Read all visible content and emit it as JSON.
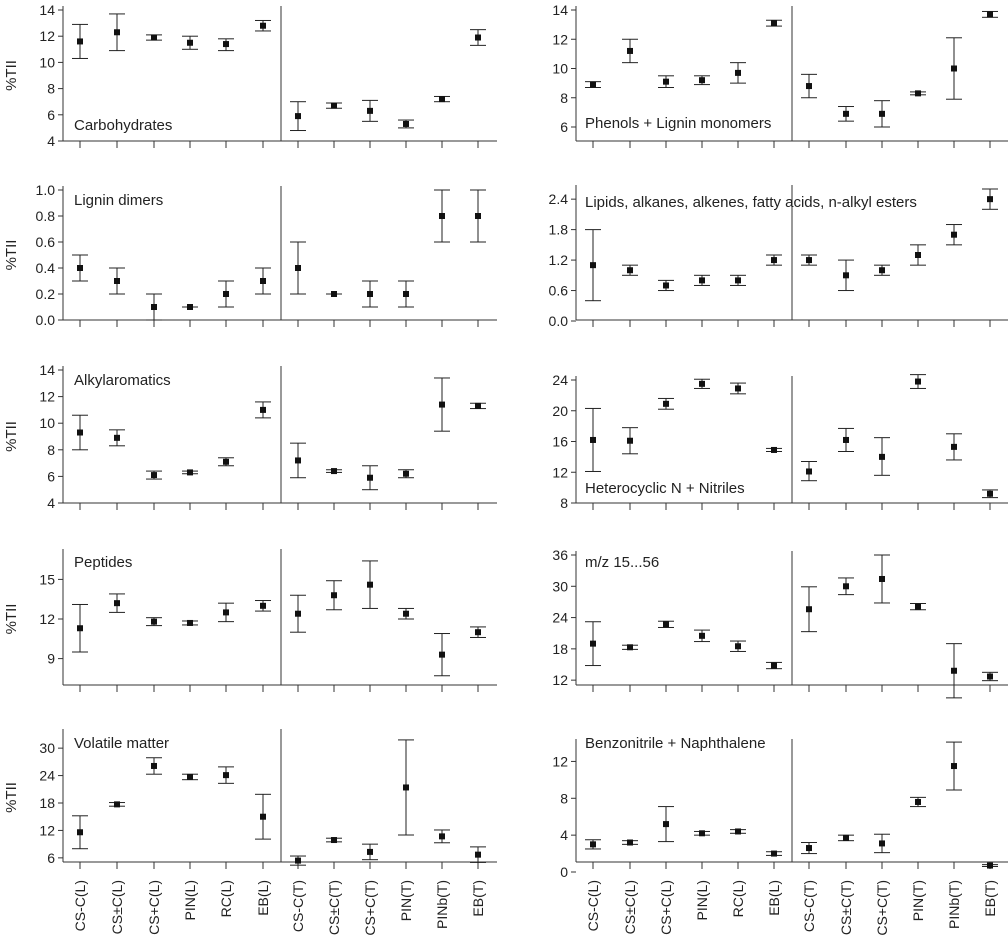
{
  "chart_data": {
    "type": "scatter",
    "x_categories": [
      "CS-C(L)",
      "CS±C(L)",
      "CS+C(L)",
      "PIN(L)",
      "RC(L)",
      "EB(L)",
      "CS-C(T)",
      "CS±C(T)",
      "CS+C(T)",
      "PIN(T)",
      "PINb(T)",
      "EB(T)"
    ],
    "ylabel": "%TII",
    "panels": [
      {
        "label": "Carbohydrates",
        "ylim": [
          4,
          14
        ],
        "yticks": [
          "4",
          "6",
          "8",
          "10",
          "12",
          "14"
        ],
        "points": [
          {
            "x": "CS-C(L)",
            "y": 11.6,
            "lo": 10.3,
            "hi": 12.9
          },
          {
            "x": "CS±C(L)",
            "y": 12.3,
            "lo": 10.9,
            "hi": 13.7
          },
          {
            "x": "CS+C(L)",
            "y": 11.9,
            "lo": 11.7,
            "hi": 12.1
          },
          {
            "x": "PIN(L)",
            "y": 11.5,
            "lo": 11.0,
            "hi": 12.0
          },
          {
            "x": "RC(L)",
            "y": 11.4,
            "lo": 10.9,
            "hi": 11.8
          },
          {
            "x": "EB(L)",
            "y": 12.8,
            "lo": 12.4,
            "hi": 13.2
          },
          {
            "x": "CS-C(T)",
            "y": 5.9,
            "lo": 4.8,
            "hi": 7.0
          },
          {
            "x": "CS±C(T)",
            "y": 6.7,
            "lo": 6.5,
            "hi": 6.9
          },
          {
            "x": "CS+C(T)",
            "y": 6.3,
            "lo": 5.5,
            "hi": 7.1
          },
          {
            "x": "PIN(T)",
            "y": 5.3,
            "lo": 5.0,
            "hi": 5.6
          },
          {
            "x": "PINb(T)",
            "y": 7.2,
            "lo": 7.0,
            "hi": 7.4
          },
          {
            "x": "EB(T)",
            "y": 11.9,
            "lo": 11.3,
            "hi": 12.5
          }
        ]
      },
      {
        "label": "Phenols + Lignin monomers",
        "ylim": [
          6,
          14
        ],
        "yticks": [
          "6",
          "8",
          "10",
          "12",
          "14"
        ],
        "points": [
          {
            "x": "CS-C(L)",
            "y": 8.9,
            "lo": 8.7,
            "hi": 9.1
          },
          {
            "x": "CS±C(L)",
            "y": 11.2,
            "lo": 10.4,
            "hi": 12.0
          },
          {
            "x": "CS+C(L)",
            "y": 9.1,
            "lo": 8.7,
            "hi": 9.5
          },
          {
            "x": "PIN(L)",
            "y": 9.2,
            "lo": 8.9,
            "hi": 9.5
          },
          {
            "x": "RC(L)",
            "y": 9.7,
            "lo": 9.0,
            "hi": 10.4
          },
          {
            "x": "EB(L)",
            "y": 13.1,
            "lo": 12.9,
            "hi": 13.3
          },
          {
            "x": "CS-C(T)",
            "y": 8.8,
            "lo": 8.0,
            "hi": 9.6
          },
          {
            "x": "CS±C(T)",
            "y": 6.9,
            "lo": 6.4,
            "hi": 7.4
          },
          {
            "x": "CS+C(T)",
            "y": 6.9,
            "lo": 6.0,
            "hi": 7.8
          },
          {
            "x": "PIN(T)",
            "y": 8.3,
            "lo": 8.2,
            "hi": 8.4
          },
          {
            "x": "PINb(T)",
            "y": 10.0,
            "lo": 7.9,
            "hi": 12.1
          },
          {
            "x": "EB(T)",
            "y": 13.7,
            "lo": 13.5,
            "hi": 13.9
          }
        ]
      },
      {
        "label": "Lignin dimers",
        "ylim": [
          0,
          1
        ],
        "yticks": [
          "0.0",
          "0.2",
          "0.4",
          "0.6",
          "0.8",
          "1.0"
        ],
        "points": [
          {
            "x": "CS-C(L)",
            "y": 0.4,
            "lo": 0.3,
            "hi": 0.5
          },
          {
            "x": "CS±C(L)",
            "y": 0.3,
            "lo": 0.2,
            "hi": 0.4
          },
          {
            "x": "CS+C(L)",
            "y": 0.1,
            "lo": 0.0,
            "hi": 0.2
          },
          {
            "x": "PIN(L)",
            "y": 0.1,
            "lo": 0.1,
            "hi": 0.1
          },
          {
            "x": "RC(L)",
            "y": 0.2,
            "lo": 0.1,
            "hi": 0.3
          },
          {
            "x": "EB(L)",
            "y": 0.3,
            "lo": 0.2,
            "hi": 0.4
          },
          {
            "x": "CS-C(T)",
            "y": 0.4,
            "lo": 0.2,
            "hi": 0.6
          },
          {
            "x": "CS±C(T)",
            "y": 0.2,
            "lo": 0.2,
            "hi": 0.2
          },
          {
            "x": "CS+C(T)",
            "y": 0.2,
            "lo": 0.1,
            "hi": 0.3
          },
          {
            "x": "PIN(T)",
            "y": 0.2,
            "lo": 0.1,
            "hi": 0.3
          },
          {
            "x": "PINb(T)",
            "y": 0.8,
            "lo": 0.6,
            "hi": 1.0
          },
          {
            "x": "EB(T)",
            "y": 0.8,
            "lo": 0.6,
            "hi": 1.0
          }
        ]
      },
      {
        "label": "Lipids, alkanes, alkenes, fatty acids, n-alkyl esters",
        "ylim": [
          0,
          2.6
        ],
        "yticks": [
          "0.0",
          "0.6",
          "1.2",
          "1.8",
          "2.4"
        ],
        "points": [
          {
            "x": "CS-C(L)",
            "y": 1.1,
            "lo": 0.4,
            "hi": 1.8
          },
          {
            "x": "CS±C(L)",
            "y": 1.0,
            "lo": 0.9,
            "hi": 1.1
          },
          {
            "x": "CS+C(L)",
            "y": 0.7,
            "lo": 0.6,
            "hi": 0.8
          },
          {
            "x": "PIN(L)",
            "y": 0.8,
            "lo": 0.7,
            "hi": 0.9
          },
          {
            "x": "RC(L)",
            "y": 0.8,
            "lo": 0.7,
            "hi": 0.9
          },
          {
            "x": "EB(L)",
            "y": 1.2,
            "lo": 1.1,
            "hi": 1.3
          },
          {
            "x": "CS-C(T)",
            "y": 1.2,
            "lo": 1.1,
            "hi": 1.3
          },
          {
            "x": "CS±C(T)",
            "y": 0.9,
            "lo": 0.6,
            "hi": 1.2
          },
          {
            "x": "CS+C(T)",
            "y": 1.0,
            "lo": 0.9,
            "hi": 1.1
          },
          {
            "x": "PIN(T)",
            "y": 1.3,
            "lo": 1.1,
            "hi": 1.5
          },
          {
            "x": "PINb(T)",
            "y": 1.7,
            "lo": 1.5,
            "hi": 1.9
          },
          {
            "x": "EB(T)",
            "y": 2.4,
            "lo": 2.2,
            "hi": 2.6
          }
        ]
      },
      {
        "label": "Alkylaromatics",
        "ylim": [
          4,
          14
        ],
        "yticks": [
          "4",
          "6",
          "8",
          "10",
          "12",
          "14"
        ],
        "points": [
          {
            "x": "CS-C(L)",
            "y": 9.3,
            "lo": 8.0,
            "hi": 10.6
          },
          {
            "x": "CS±C(L)",
            "y": 8.9,
            "lo": 8.3,
            "hi": 9.5
          },
          {
            "x": "CS+C(L)",
            "y": 6.1,
            "lo": 5.8,
            "hi": 6.4
          },
          {
            "x": "PIN(L)",
            "y": 6.3,
            "lo": 6.2,
            "hi": 6.4
          },
          {
            "x": "RC(L)",
            "y": 7.1,
            "lo": 6.8,
            "hi": 7.4
          },
          {
            "x": "EB(L)",
            "y": 11.0,
            "lo": 10.4,
            "hi": 11.6
          },
          {
            "x": "CS-C(T)",
            "y": 7.2,
            "lo": 5.9,
            "hi": 8.5
          },
          {
            "x": "CS±C(T)",
            "y": 6.4,
            "lo": 6.3,
            "hi": 6.5
          },
          {
            "x": "CS+C(T)",
            "y": 5.9,
            "lo": 5.0,
            "hi": 6.8
          },
          {
            "x": "PIN(T)",
            "y": 6.2,
            "lo": 5.9,
            "hi": 6.5
          },
          {
            "x": "PINb(T)",
            "y": 11.4,
            "lo": 9.4,
            "hi": 13.4
          },
          {
            "x": "EB(T)",
            "y": 11.3,
            "lo": 11.1,
            "hi": 11.5
          }
        ]
      },
      {
        "label": "Heterocyclic N + Nitriles",
        "ylim": [
          8,
          24
        ],
        "yticks": [
          "8",
          "12",
          "16",
          "20",
          "24"
        ],
        "points": [
          {
            "x": "CS-C(L)",
            "y": 16.2,
            "lo": 12.1,
            "hi": 20.3
          },
          {
            "x": "CS±C(L)",
            "y": 16.1,
            "lo": 14.4,
            "hi": 17.8
          },
          {
            "x": "CS+C(L)",
            "y": 20.9,
            "lo": 20.2,
            "hi": 21.6
          },
          {
            "x": "PIN(L)",
            "y": 23.5,
            "lo": 22.9,
            "hi": 24.1
          },
          {
            "x": "RC(L)",
            "y": 22.9,
            "lo": 22.2,
            "hi": 23.6
          },
          {
            "x": "EB(L)",
            "y": 14.9,
            "lo": 14.7,
            "hi": 15.1
          },
          {
            "x": "CS-C(T)",
            "y": 12.1,
            "lo": 10.9,
            "hi": 13.4
          },
          {
            "x": "CS±C(T)",
            "y": 16.2,
            "lo": 14.7,
            "hi": 17.7
          },
          {
            "x": "CS+C(T)",
            "y": 14.0,
            "lo": 11.6,
            "hi": 16.5
          },
          {
            "x": "PIN(T)",
            "y": 23.8,
            "lo": 22.9,
            "hi": 24.7
          },
          {
            "x": "PINb(T)",
            "y": 15.3,
            "lo": 13.6,
            "hi": 17.0
          },
          {
            "x": "EB(T)",
            "y": 9.2,
            "lo": 8.7,
            "hi": 9.7
          }
        ]
      },
      {
        "label": "Peptides",
        "ylim": [
          7,
          17
        ],
        "yticks": [
          "9",
          "12",
          "15"
        ],
        "points": [
          {
            "x": "CS-C(L)",
            "y": 11.3,
            "lo": 9.5,
            "hi": 13.1
          },
          {
            "x": "CS±C(L)",
            "y": 13.2,
            "lo": 12.5,
            "hi": 13.9
          },
          {
            "x": "CS+C(L)",
            "y": 11.8,
            "lo": 11.5,
            "hi": 12.1
          },
          {
            "x": "PIN(L)",
            "y": 11.7,
            "lo": 11.55,
            "hi": 11.85
          },
          {
            "x": "RC(L)",
            "y": 12.5,
            "lo": 11.8,
            "hi": 13.2
          },
          {
            "x": "EB(L)",
            "y": 13.0,
            "lo": 12.6,
            "hi": 13.4
          },
          {
            "x": "CS-C(T)",
            "y": 12.4,
            "lo": 11.0,
            "hi": 13.8
          },
          {
            "x": "CS±C(T)",
            "y": 13.8,
            "lo": 12.7,
            "hi": 14.9
          },
          {
            "x": "CS+C(T)",
            "y": 14.6,
            "lo": 12.8,
            "hi": 16.4
          },
          {
            "x": "PIN(T)",
            "y": 12.4,
            "lo": 12.0,
            "hi": 12.8
          },
          {
            "x": "PINb(T)",
            "y": 9.3,
            "lo": 7.7,
            "hi": 10.9
          },
          {
            "x": "EB(T)",
            "y": 11.0,
            "lo": 10.6,
            "hi": 11.4
          }
        ]
      },
      {
        "label": "m/z 15...56",
        "ylim": [
          8,
          36
        ],
        "yticks": [
          "12",
          "18",
          "24",
          "30",
          "36"
        ],
        "points": [
          {
            "x": "CS-C(L)",
            "y": 19.0,
            "lo": 14.8,
            "hi": 23.2
          },
          {
            "x": "CS±C(L)",
            "y": 18.3,
            "lo": 17.9,
            "hi": 18.7
          },
          {
            "x": "CS+C(L)",
            "y": 22.7,
            "lo": 22.1,
            "hi": 23.3
          },
          {
            "x": "PIN(L)",
            "y": 20.5,
            "lo": 19.4,
            "hi": 21.6
          },
          {
            "x": "RC(L)",
            "y": 18.5,
            "lo": 17.5,
            "hi": 19.5
          },
          {
            "x": "EB(L)",
            "y": 14.8,
            "lo": 14.2,
            "hi": 15.4
          },
          {
            "x": "CS-C(T)",
            "y": 25.6,
            "lo": 21.3,
            "hi": 29.9
          },
          {
            "x": "CS±C(T)",
            "y": 30.0,
            "lo": 28.4,
            "hi": 31.6
          },
          {
            "x": "CS+C(T)",
            "y": 31.4,
            "lo": 26.8,
            "hi": 36.0
          },
          {
            "x": "PIN(T)",
            "y": 26.1,
            "lo": 25.5,
            "hi": 26.7
          },
          {
            "x": "PINb(T)",
            "y": 13.8,
            "lo": 8.6,
            "hi": 19.0
          },
          {
            "x": "EB(T)",
            "y": 12.7,
            "lo": 11.9,
            "hi": 13.5
          }
        ]
      },
      {
        "label": "Volatile matter",
        "ylim": [
          4,
          32
        ],
        "yticks": [
          "6",
          "12",
          "18",
          "24",
          "30"
        ],
        "points": [
          {
            "x": "CS-C(L)",
            "y": 11.6,
            "lo": 8.0,
            "hi": 15.2
          },
          {
            "x": "CS±C(L)",
            "y": 17.7,
            "lo": 17.3,
            "hi": 18.1
          },
          {
            "x": "CS+C(L)",
            "y": 26.1,
            "lo": 24.3,
            "hi": 27.9
          },
          {
            "x": "PIN(L)",
            "y": 23.7,
            "lo": 23.1,
            "hi": 24.3
          },
          {
            "x": "RC(L)",
            "y": 24.1,
            "lo": 22.3,
            "hi": 25.9
          },
          {
            "x": "EB(L)",
            "y": 15.0,
            "lo": 10.1,
            "hi": 19.9
          },
          {
            "x": "CS-C(T)",
            "y": 5.4,
            "lo": 4.4,
            "hi": 6.4
          },
          {
            "x": "CS±C(T)",
            "y": 9.9,
            "lo": 9.5,
            "hi": 10.3
          },
          {
            "x": "CS+C(T)",
            "y": 7.3,
            "lo": 5.6,
            "hi": 9.0
          },
          {
            "x": "PIN(T)",
            "y": 21.4,
            "lo": 11.0,
            "hi": 31.8
          },
          {
            "x": "PINb(T)",
            "y": 10.7,
            "lo": 9.3,
            "hi": 12.1
          },
          {
            "x": "EB(T)",
            "y": 6.7,
            "lo": 5.0,
            "hi": 8.4
          }
        ]
      },
      {
        "label": "Benzonitrile + Naphthalene",
        "ylim": [
          0,
          14
        ],
        "yticks": [
          "0",
          "4",
          "8",
          "12"
        ],
        "points": [
          {
            "x": "CS-C(L)",
            "y": 3.0,
            "lo": 2.5,
            "hi": 3.5
          },
          {
            "x": "CS±C(L)",
            "y": 3.2,
            "lo": 3.0,
            "hi": 3.4
          },
          {
            "x": "CS+C(L)",
            "y": 5.2,
            "lo": 3.3,
            "hi": 7.1
          },
          {
            "x": "PIN(L)",
            "y": 4.2,
            "lo": 4.0,
            "hi": 4.4
          },
          {
            "x": "RC(L)",
            "y": 4.4,
            "lo": 4.2,
            "hi": 4.6
          },
          {
            "x": "EB(L)",
            "y": 2.0,
            "lo": 1.8,
            "hi": 2.2
          },
          {
            "x": "CS-C(T)",
            "y": 2.6,
            "lo": 2.0,
            "hi": 3.2
          },
          {
            "x": "CS±C(T)",
            "y": 3.7,
            "lo": 3.4,
            "hi": 4.0
          },
          {
            "x": "CS+C(T)",
            "y": 3.1,
            "lo": 2.1,
            "hi": 4.1
          },
          {
            "x": "PIN(T)",
            "y": 7.6,
            "lo": 7.1,
            "hi": 8.1
          },
          {
            "x": "PINb(T)",
            "y": 11.5,
            "lo": 8.9,
            "hi": 14.1
          },
          {
            "x": "EB(T)",
            "y": 0.7,
            "lo": 0.6,
            "hi": 0.8
          }
        ]
      }
    ]
  }
}
